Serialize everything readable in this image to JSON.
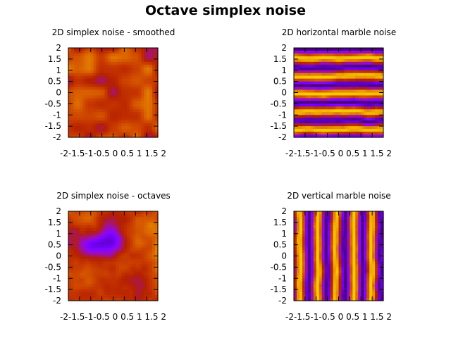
{
  "title": "Octave simplex noise",
  "chart_data": [
    {
      "type": "heatmap",
      "title": "2D simplex noise - smoothed",
      "colormap": "gnuplot (black-purple-red-orange-yellow)",
      "xlim": [
        -2,
        2
      ],
      "ylim": [
        -2,
        2
      ],
      "xticks": [
        "-2",
        "-1.5",
        "-1",
        "-0.5",
        "0",
        "0.5",
        "1",
        "1.5",
        "2"
      ],
      "yticks": [
        "2",
        "1.5",
        "1",
        "0.5",
        "0",
        "-0.5",
        "-1",
        "-1.5",
        "-2"
      ],
      "grid": false,
      "pattern": "smoothed",
      "range": [
        0.35,
        0.8
      ]
    },
    {
      "type": "heatmap",
      "title": "2D horizontal marble noise",
      "colormap": "gnuplot (black-purple-red-orange-yellow)",
      "xlim": [
        -2,
        2
      ],
      "ylim": [
        -2,
        2
      ],
      "xticks": [
        "-2",
        "-1.5",
        "-1",
        "-0.5",
        "0",
        "0.5",
        "1",
        "1.5",
        "2"
      ],
      "yticks": [
        "2",
        "1.5",
        "1",
        "0.5",
        "0",
        "-0.5",
        "-1",
        "-1.5",
        "-2"
      ],
      "grid": false,
      "pattern": "marble-horizontal",
      "range": [
        0.05,
        0.95
      ]
    },
    {
      "type": "heatmap",
      "title": "2D simplex noise - octaves",
      "colormap": "gnuplot (black-purple-red-orange-yellow)",
      "xlim": [
        -2,
        2
      ],
      "ylim": [
        -2,
        2
      ],
      "xticks": [
        "-2",
        "-1.5",
        "-1",
        "-0.5",
        "0",
        "0.5",
        "1",
        "1.5",
        "2"
      ],
      "yticks": [
        "2",
        "1.5",
        "1",
        "0.5",
        "0",
        "-0.5",
        "-1",
        "-1.5",
        "-2"
      ],
      "grid": false,
      "pattern": "octaves",
      "range": [
        0.05,
        0.85
      ]
    },
    {
      "type": "heatmap",
      "title": "2D vertical marble noise",
      "colormap": "gnuplot (black-purple-red-orange-yellow)",
      "xlim": [
        -2,
        2
      ],
      "ylim": [
        -2,
        2
      ],
      "xticks": [
        "-2",
        "-1.5",
        "-1",
        "-0.5",
        "0",
        "0.5",
        "1",
        "1.5",
        "2"
      ],
      "yticks": [
        "2",
        "1.5",
        "1",
        "0.5",
        "0",
        "-0.5",
        "-1",
        "-1.5",
        "-2"
      ],
      "grid": false,
      "pattern": "marble-vertical",
      "range": [
        0.05,
        0.95
      ]
    }
  ]
}
